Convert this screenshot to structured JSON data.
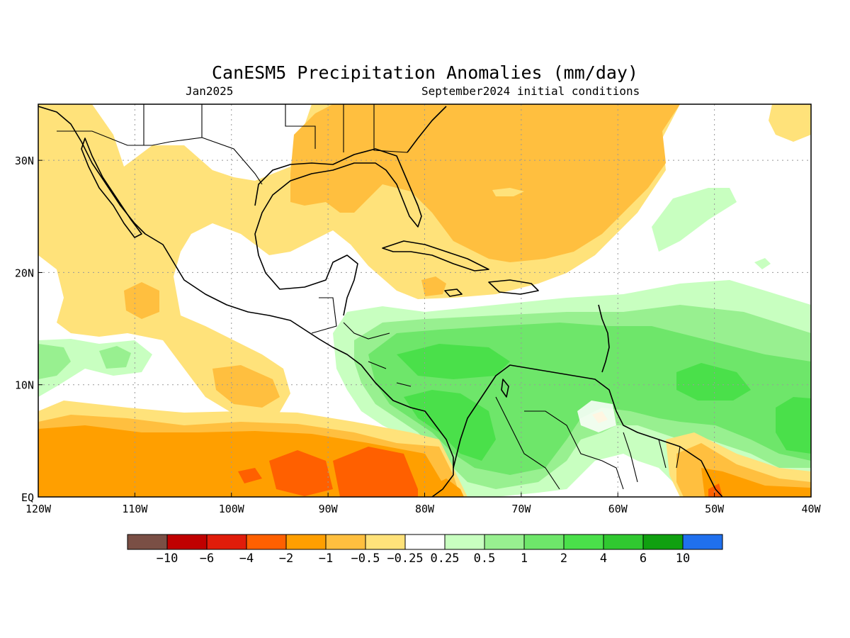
{
  "title": "CanESM5 Precipitation Anomalies (mm/day)",
  "subtitle_left": "Jan2025",
  "subtitle_right": "September2024 initial conditions",
  "map": {
    "lon_range": [
      -120,
      -40
    ],
    "lat_range": [
      0,
      35
    ],
    "lon_ticks": [
      {
        "value": -120,
        "label": "120W"
      },
      {
        "value": -110,
        "label": "110W"
      },
      {
        "value": -100,
        "label": "100W"
      },
      {
        "value": -90,
        "label": "90W"
      },
      {
        "value": -80,
        "label": "80W"
      },
      {
        "value": -70,
        "label": "70W"
      },
      {
        "value": -60,
        "label": "60W"
      },
      {
        "value": -50,
        "label": "50W"
      },
      {
        "value": -40,
        "label": "40W"
      }
    ],
    "lat_ticks": [
      {
        "value": 0,
        "label": "EQ"
      },
      {
        "value": 10,
        "label": "10N"
      },
      {
        "value": 20,
        "label": "20N"
      },
      {
        "value": 30,
        "label": "30N"
      }
    ],
    "grid": true
  },
  "colorbar": {
    "colors": [
      "#7a4f45",
      "#c00000",
      "#e11c0a",
      "#ff6000",
      "#ff9f00",
      "#ffbf3f",
      "#ffe27a",
      "#ffffff",
      "#c8ffc0",
      "#98f090",
      "#6ee66a",
      "#4ae04a",
      "#30c830",
      "#10a010",
      "#2070ee"
    ],
    "labels": [
      "−10",
      "−6",
      "−4",
      "−2",
      "−1",
      "−0.5",
      "−0.25",
      "0.25",
      "0.5",
      "1",
      "2",
      "4",
      "6",
      "10"
    ]
  }
}
